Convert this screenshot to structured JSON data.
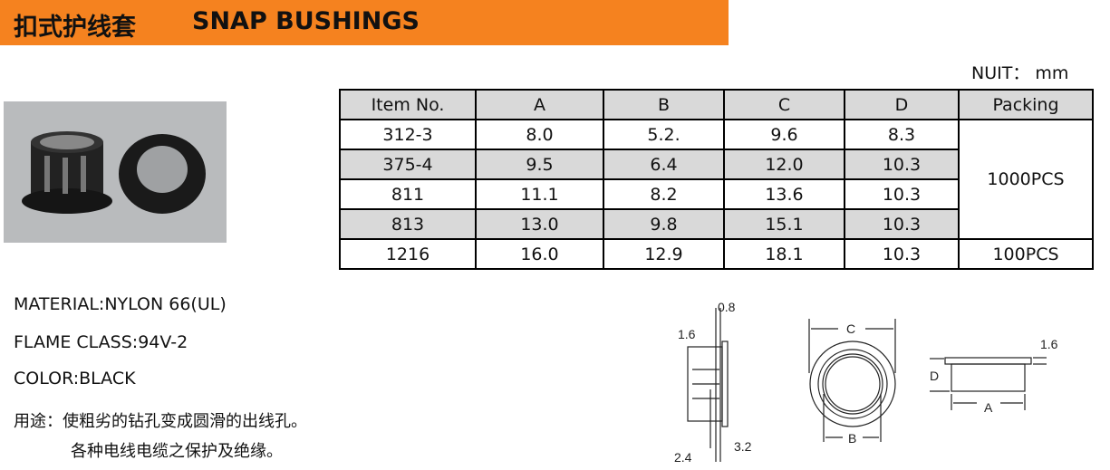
{
  "header": {
    "title_cn": "扣式护线套",
    "title_en": "SNAP BUSHINGS",
    "accent": "#f5821f"
  },
  "unit": "NUIT： mm",
  "table": {
    "headers": [
      "Item No.",
      "A",
      "B",
      "C",
      "D",
      "Packing"
    ],
    "rows": [
      [
        "312-3",
        "8.0",
        "5.2.",
        "9.6",
        "8.3"
      ],
      [
        "375-4",
        "9.5",
        "6.4",
        "12.0",
        "10.3"
      ],
      [
        "811",
        "11.1",
        "8.2",
        "13.6",
        "10.3"
      ],
      [
        "813",
        "13.0",
        "9.8",
        "15.1",
        "10.3"
      ],
      [
        "1216",
        "16.0",
        "12.9",
        "18.1",
        "10.3"
      ]
    ],
    "packing": [
      "1000PCS",
      "100PCS"
    ]
  },
  "specs": {
    "material": "MATERIAL:NYLON 66(UL)",
    "flame": "FLAME CLASS:94V-2",
    "color": "COLOR:BLACK"
  },
  "usage": {
    "line1": "用途：使粗劣的钻孔变成圆滑的出线孔。",
    "line2": "各种电线电缆之保护及绝缘。"
  },
  "diagram": {
    "d08": "0.8",
    "d16a": "1.6",
    "d24": "2.4",
    "d32": "3.2",
    "C": "C",
    "B": "B",
    "A": "A",
    "D": "D",
    "d16b": "1.6"
  }
}
